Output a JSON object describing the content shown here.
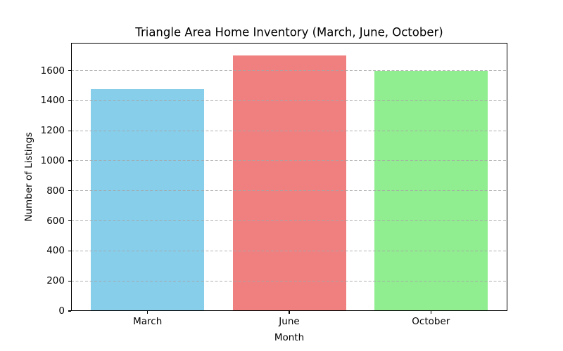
{
  "chart_data": {
    "type": "bar",
    "title": "Triangle Area Home Inventory (March, June, October)",
    "xlabel": "Month",
    "ylabel": "Number of Listings",
    "categories": [
      "March",
      "June",
      "October"
    ],
    "values": [
      1475,
      1700,
      1600
    ],
    "bar_colors": [
      "#87CEEB",
      "#F08080",
      "#90EE90"
    ],
    "ylim": [
      0,
      1785
    ],
    "yticks": [
      0,
      200,
      400,
      600,
      800,
      1000,
      1200,
      1400,
      1600
    ],
    "grid": {
      "axis": "y",
      "style": "dashed",
      "color": "#b0b0b0"
    },
    "legend": "none",
    "background": "#ffffff"
  }
}
